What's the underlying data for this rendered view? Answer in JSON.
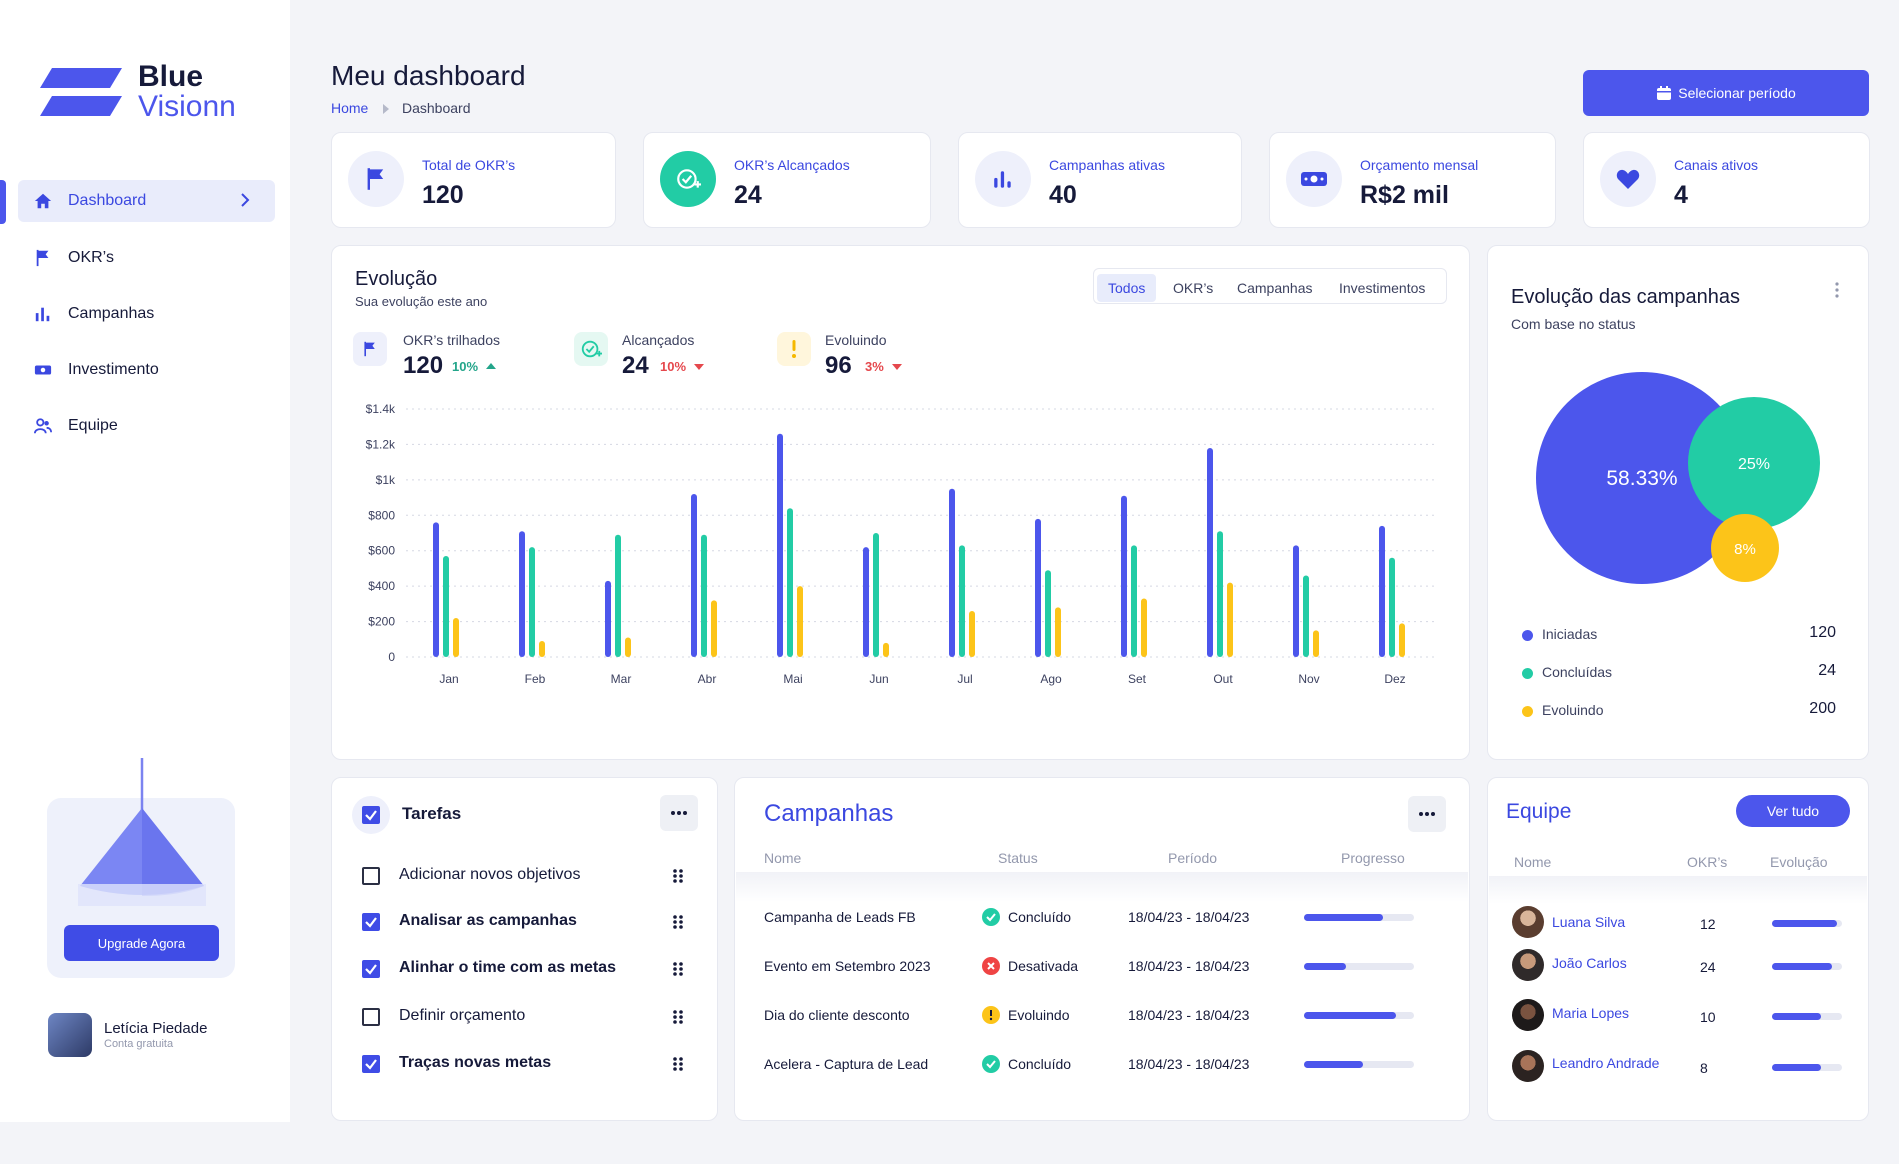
{
  "brand": {
    "line1": "Blue",
    "line2": "Visionn",
    "accent": "#4c56ec"
  },
  "sidebar": {
    "items": [
      {
        "label": "Dashboard",
        "icon": "home-icon"
      },
      {
        "label": "OKR’s",
        "icon": "flag-icon"
      },
      {
        "label": "Campanhas",
        "icon": "bar-chart-icon"
      },
      {
        "label": "Investimento",
        "icon": "money-icon"
      },
      {
        "label": "Equipe",
        "icon": "users-icon"
      }
    ],
    "upgrade_label": "Upgrade Agora",
    "user": {
      "name": "Letícia Piedade",
      "plan": "Conta gratuita"
    }
  },
  "header": {
    "title": "Meu dashboard",
    "crumb_home": "Home",
    "crumb_current": "Dashboard",
    "period_button": "Selecionar período"
  },
  "stats": [
    {
      "label": "Total de OKR’s",
      "value": "120",
      "icon": "flag-icon"
    },
    {
      "label": "OKR’s Alcançados",
      "value": "24",
      "icon": "check-plus-icon"
    },
    {
      "label": "Campanhas ativas",
      "value": "40",
      "icon": "bar-chart-icon"
    },
    {
      "label": "Orçamento mensal",
      "value": "R$2 mil",
      "icon": "money-icon"
    },
    {
      "label": "Canais ativos",
      "value": "4",
      "icon": "heart-icon"
    }
  ],
  "evolution": {
    "title": "Evolução",
    "subtitle": "Sua evolução este ano",
    "tabs": [
      "Todos",
      "OKR’s",
      "Campanhas",
      "Investimentos"
    ],
    "kpis": [
      {
        "label": "OKR’s trilhados",
        "value": "120",
        "pct": "10%",
        "trend": "up"
      },
      {
        "label": "Alcançados",
        "value": "24",
        "pct": "10%",
        "trend": "down"
      },
      {
        "label": "Evoluindo",
        "value": "96",
        "pct": "3%",
        "trend": "down"
      }
    ]
  },
  "chart_data": {
    "type": "bar",
    "categories": [
      "Jan",
      "Feb",
      "Mar",
      "Abr",
      "Mai",
      "Jun",
      "Jul",
      "Ago",
      "Set",
      "Out",
      "Nov",
      "Dez"
    ],
    "series": [
      {
        "name": "OKR’s trilhados",
        "color": "#4c56ec",
        "values": [
          760,
          710,
          430,
          920,
          1260,
          620,
          950,
          780,
          910,
          1180,
          630,
          740
        ]
      },
      {
        "name": "Alcançados",
        "color": "#22cca5",
        "values": [
          570,
          620,
          690,
          690,
          840,
          700,
          630,
          490,
          630,
          710,
          460,
          560
        ]
      },
      {
        "name": "Evoluindo",
        "color": "#fcc419",
        "values": [
          220,
          90,
          110,
          320,
          400,
          80,
          260,
          280,
          330,
          420,
          150,
          190
        ]
      }
    ],
    "ylim": [
      0,
      1400
    ],
    "yticks": [
      "0",
      "$200",
      "$400",
      "$600",
      "$800",
      "$1k",
      "$1.2k",
      "$1.4k"
    ],
    "title": "Evolução",
    "xlabel": "",
    "ylabel": ""
  },
  "campaign_status": {
    "title": "Evolução das campanhas",
    "subtitle": "Com base no status",
    "bubbles": [
      {
        "label": "58.33%",
        "color": "#4c56ec"
      },
      {
        "label": "25%",
        "color": "#22cca5"
      },
      {
        "label": "8%",
        "color": "#fcc419"
      }
    ],
    "legend": [
      {
        "label": "Iniciadas",
        "value": "120",
        "color": "#4c56ec"
      },
      {
        "label": "Concluídas",
        "value": "24",
        "color": "#22cca5"
      },
      {
        "label": "Evoluindo",
        "value": "200",
        "color": "#fcc419"
      }
    ]
  },
  "tasks": {
    "title": "Tarefas",
    "items": [
      {
        "label": "Adicionar novos objetivos",
        "done": false
      },
      {
        "label": "Analisar as campanhas",
        "done": true
      },
      {
        "label": "Alinhar o time com as metas",
        "done": true
      },
      {
        "label": "Definir orçamento",
        "done": false
      },
      {
        "label": "Traças novas metas",
        "done": true
      }
    ]
  },
  "campaigns": {
    "title": "Campanhas",
    "columns": [
      "Nome",
      "Status",
      "Período",
      "Progresso"
    ],
    "rows": [
      {
        "name": "Campanha de Leads FB",
        "status": "Concluído",
        "status_color": "#22cca5",
        "period": "18/04/23 - 18/04/23",
        "progress": 0.72
      },
      {
        "name": "Evento em Setembro 2023",
        "status": "Desativada",
        "status_color": "#ef4444",
        "period": "18/04/23 - 18/04/23",
        "progress": 0.38
      },
      {
        "name": "Dia do cliente desconto",
        "status": "Evoluindo",
        "status_color": "#fcc419",
        "period": "18/04/23 - 18/04/23",
        "progress": 0.84
      },
      {
        "name": "Acelera - Captura de Lead",
        "status": "Concluído",
        "status_color": "#22cca5",
        "period": "18/04/23 - 18/04/23",
        "progress": 0.54
      }
    ]
  },
  "team": {
    "title": "Equipe",
    "view_all": "Ver tudo",
    "columns": [
      "Nome",
      "OKR’s",
      "Evolução"
    ],
    "members": [
      {
        "name": "Luana Silva",
        "okrs": "12",
        "progress": 0.93
      },
      {
        "name": "João Carlos",
        "okrs": "24",
        "progress": 0.86
      },
      {
        "name": "Maria Lopes",
        "okrs": "10",
        "progress": 0.7
      },
      {
        "name": "Leandro Andrade",
        "okrs": "8",
        "progress": 0.7
      }
    ]
  }
}
